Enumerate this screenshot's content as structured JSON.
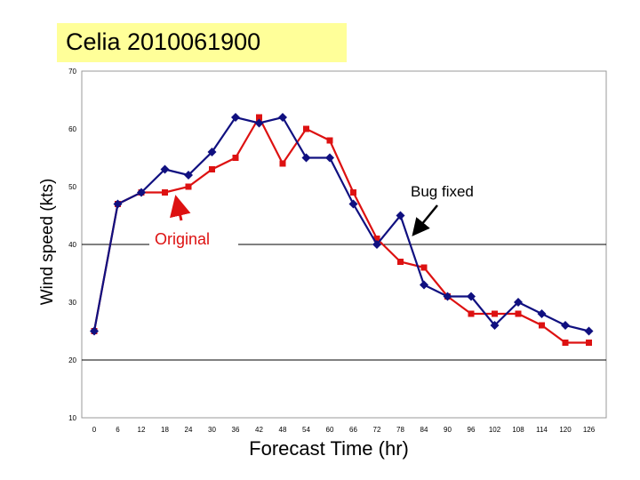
{
  "chart_data": {
    "type": "line",
    "title": "Celia  2010061900",
    "xlabel": "Forecast Time (hr)",
    "ylabel": "Wind speed (kts)",
    "ylim": [
      10,
      70
    ],
    "yticks": [
      10,
      20,
      30,
      40,
      50,
      60,
      70
    ],
    "gridlines": [
      20,
      40
    ],
    "x": [
      0,
      6,
      12,
      18,
      24,
      30,
      36,
      42,
      48,
      54,
      60,
      66,
      72,
      78,
      84,
      90,
      96,
      102,
      108,
      114,
      120,
      126
    ],
    "series": [
      {
        "name": "Original",
        "color": "#dd1111",
        "marker": "square",
        "values": [
          25,
          47,
          49,
          49,
          50,
          53,
          55,
          62,
          54,
          60,
          58,
          49,
          41,
          37,
          36,
          31,
          28,
          28,
          28,
          26,
          23,
          23
        ]
      },
      {
        "name": "Bug fixed",
        "color": "#101080",
        "marker": "diamond",
        "values": [
          25,
          47,
          49,
          53,
          52,
          56,
          62,
          61,
          62,
          55,
          55,
          47,
          40,
          45,
          33,
          31,
          31,
          26,
          30,
          28,
          26,
          25
        ]
      }
    ],
    "annotations": [
      {
        "text": "Original",
        "series": "Original",
        "x": 18
      },
      {
        "text": "Bug fixed",
        "series": "Bug fixed",
        "x": 78
      }
    ]
  }
}
